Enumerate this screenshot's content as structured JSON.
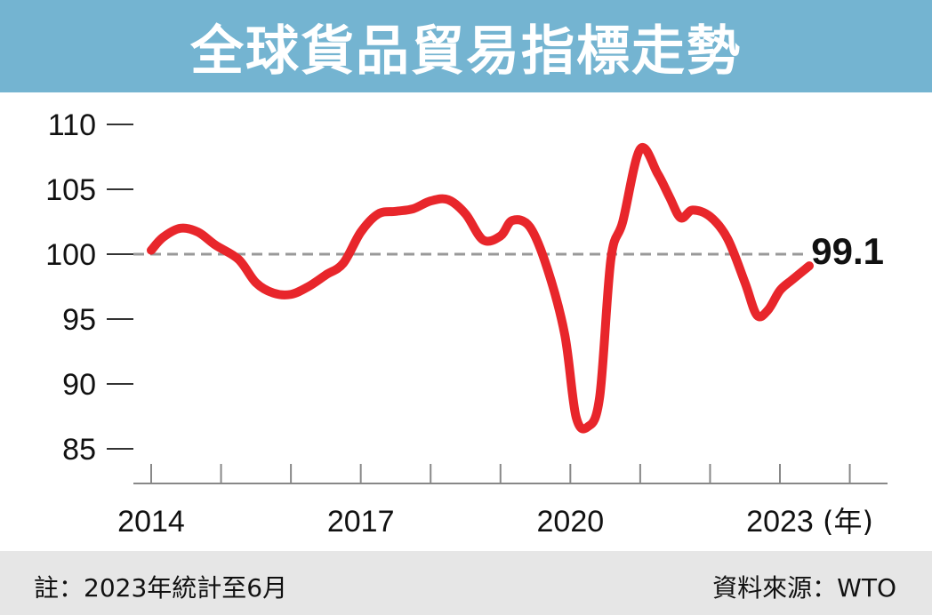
{
  "header": {
    "title": "全球貨品貿易指標走勢"
  },
  "footer": {
    "note": "註：2023年統計至6月",
    "source": "資料來源：WTO"
  },
  "colors": {
    "header_bg": "#74b4d1",
    "line": "#e8262b",
    "reference_line": "#999999",
    "footer_bg": "#e6e6e6"
  },
  "chart_data": {
    "type": "line",
    "title": "全球貨品貿易指標走勢",
    "x_unit": "(年)",
    "x_ticks": [
      "2014",
      "2017",
      "2020",
      "2023"
    ],
    "y_ticks": [
      85,
      90,
      95,
      100,
      105,
      110
    ],
    "ylim": [
      83,
      112
    ],
    "xlim": [
      2013.95,
      2025.3
    ],
    "reference_line": 100,
    "end_label": "99.1",
    "series": [
      {
        "x": [
          2014.0,
          2014.17,
          2014.42,
          2014.67,
          2014.92,
          2015.25,
          2015.5,
          2015.75,
          2016.0,
          2016.25,
          2016.5,
          2016.75,
          2017.0,
          2017.25,
          2017.5,
          2017.75,
          2018.0,
          2018.25,
          2018.5,
          2018.75,
          2019.0,
          2019.17,
          2019.42,
          2019.67,
          2019.92,
          2020.08,
          2020.25,
          2020.42,
          2020.58,
          2020.75,
          2021.0,
          2021.25,
          2021.42,
          2021.58,
          2021.75,
          2022.0,
          2022.25,
          2022.5,
          2022.67,
          2022.83,
          2023.0,
          2023.17,
          2023.42
        ],
        "y": [
          100.3,
          101.3,
          102.0,
          101.7,
          100.7,
          99.6,
          97.8,
          97.0,
          96.9,
          97.5,
          98.4,
          99.3,
          101.7,
          103.1,
          103.3,
          103.5,
          104.1,
          104.2,
          103.1,
          101.1,
          101.4,
          102.6,
          102.1,
          98.9,
          93.8,
          87.5,
          86.7,
          89.0,
          99.6,
          102.5,
          108.1,
          106.2,
          104.4,
          102.8,
          103.4,
          102.9,
          101.2,
          97.8,
          95.3,
          95.7,
          97.2,
          98.0,
          99.1
        ]
      }
    ]
  }
}
